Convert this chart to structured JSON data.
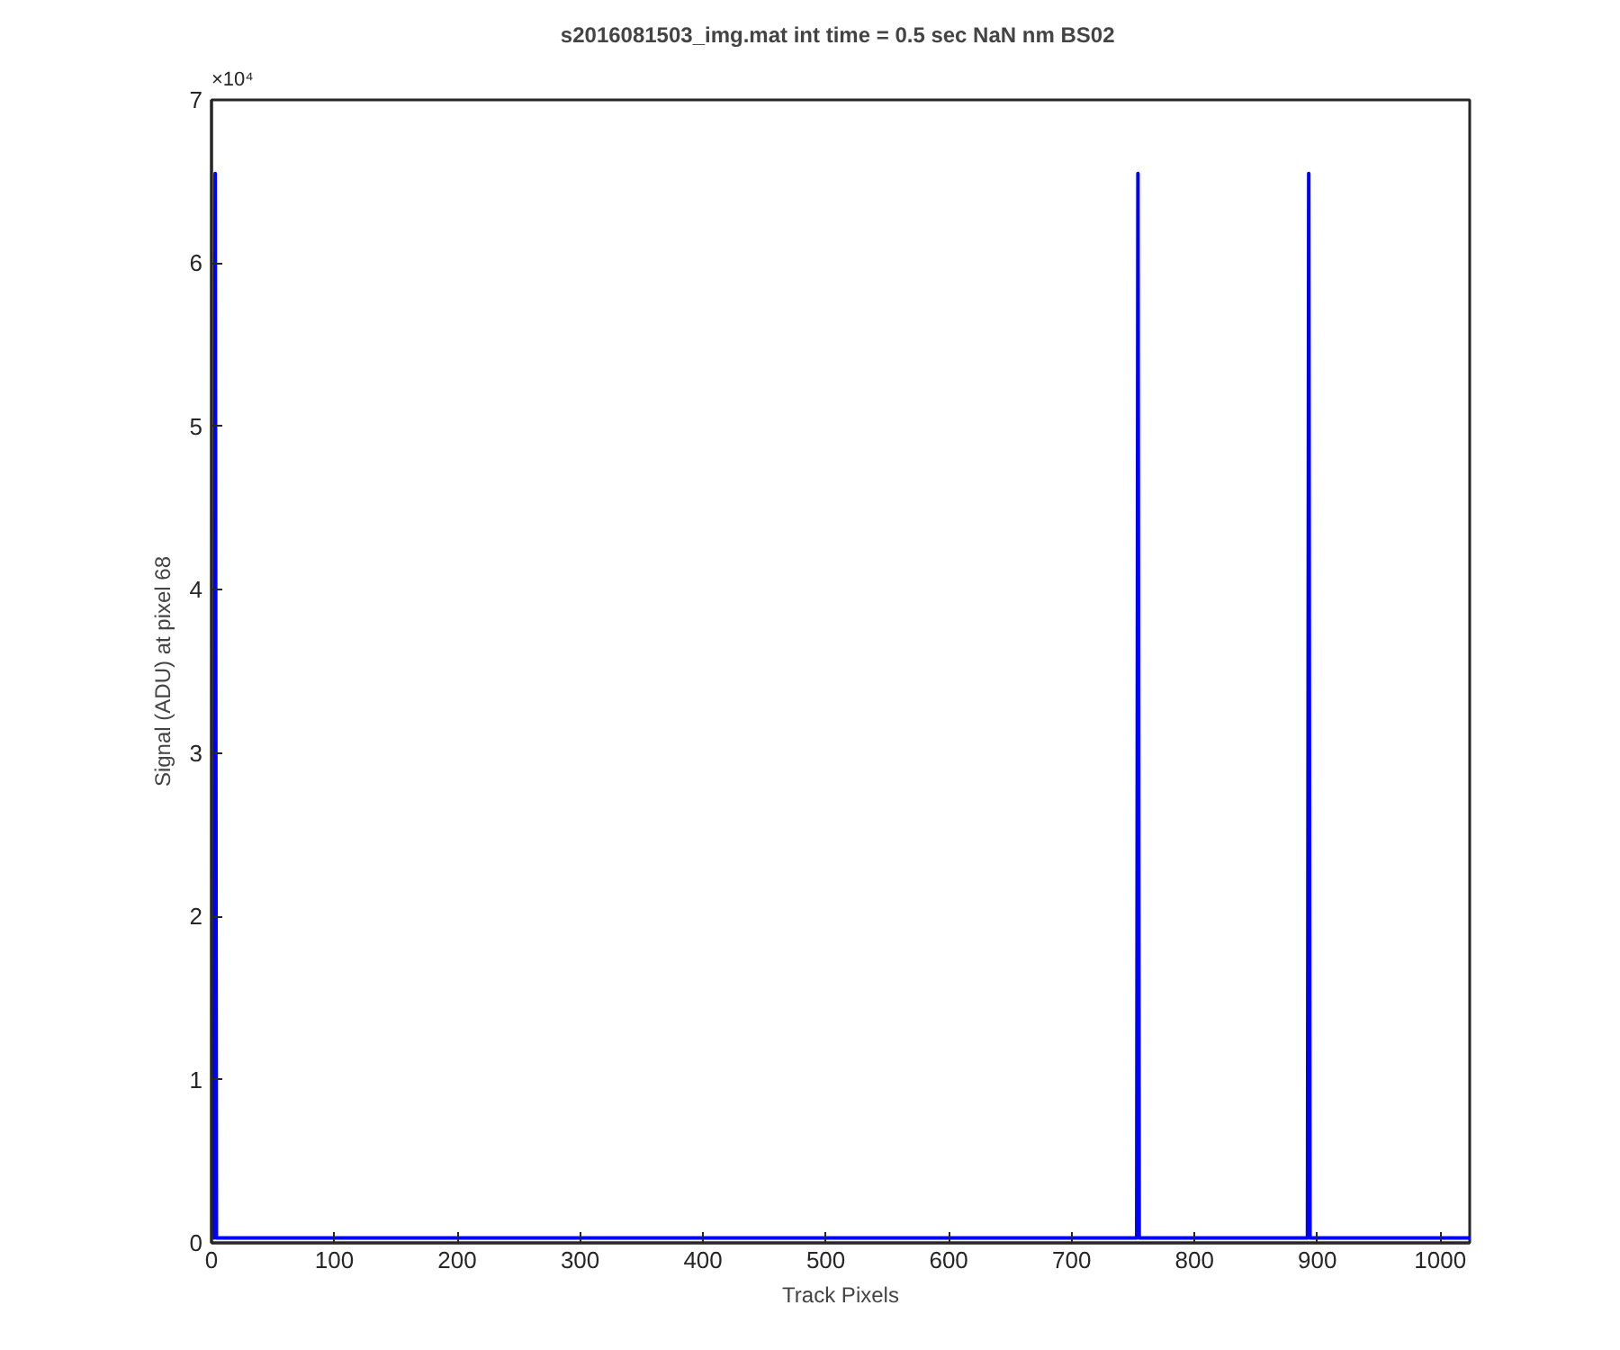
{
  "chart_data": {
    "type": "line",
    "title": "s2016081503_img.mat int time = 0.5 sec  NaN nm BS02",
    "xlabel": "Track Pixels",
    "ylabel": "Signal (ADU) at pixel 68",
    "annotations": [
      "×10⁴"
    ],
    "x": [
      1,
      2,
      3,
      4,
      5,
      25,
      50,
      75,
      100,
      125,
      150,
      175,
      200,
      225,
      250,
      275,
      300,
      325,
      350,
      375,
      400,
      425,
      450,
      475,
      500,
      525,
      550,
      575,
      600,
      625,
      650,
      675,
      700,
      725,
      750,
      752,
      753,
      754,
      755,
      756,
      775,
      800,
      825,
      850,
      875,
      890,
      892,
      893,
      894,
      895,
      910,
      930,
      950,
      970,
      990,
      1010,
      1024
    ],
    "series": [
      {
        "color": "#0000ff",
        "values": [
          0.03,
          0.03,
          6.55,
          0.03,
          0.03,
          0.03,
          0.03,
          0.03,
          0.03,
          0.03,
          0.03,
          0.03,
          0.03,
          0.03,
          0.03,
          0.03,
          0.03,
          0.03,
          0.03,
          0.03,
          0.03,
          0.03,
          0.03,
          0.03,
          0.03,
          0.03,
          0.03,
          0.03,
          0.03,
          0.03,
          0.03,
          0.03,
          0.03,
          0.03,
          0.03,
          0.03,
          0.03,
          6.55,
          0.03,
          0.03,
          0.03,
          0.03,
          0.03,
          0.03,
          0.03,
          0.03,
          0.03,
          6.55,
          0.03,
          0.03,
          0.03,
          0.03,
          0.03,
          0.03,
          0.03,
          0.03,
          0.03
        ]
      }
    ],
    "xlim": [
      0,
      1024
    ],
    "ylim": [
      0,
      7
    ],
    "xticks": [
      0,
      100,
      200,
      300,
      400,
      500,
      600,
      700,
      800,
      900,
      1000
    ],
    "yticks": [
      0,
      1,
      2,
      3,
      4,
      5,
      6,
      7
    ],
    "grid": false,
    "marker": "none",
    "line_style": "solid"
  }
}
